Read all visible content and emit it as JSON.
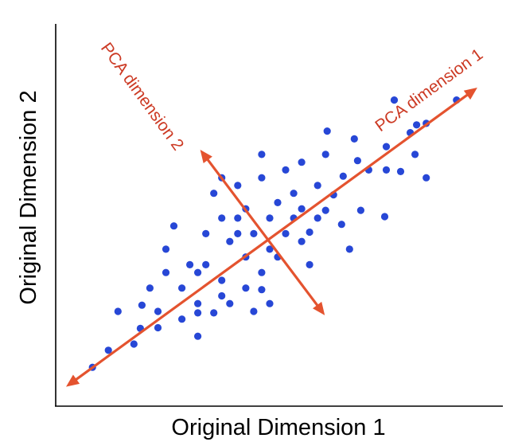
{
  "chart_data": {
    "type": "scatter",
    "xlabel": "Original Dimension 1",
    "ylabel": "Original Dimension 2",
    "grid": false,
    "xlim": [
      70,
      630
    ],
    "ylim": [
      512,
      20
    ],
    "colors": {
      "points": "#2747d6",
      "arrows": "#e4532f",
      "axes": "#000000",
      "labels": "#cc3a24"
    },
    "annotations": [
      {
        "id": "pca1",
        "text": "PCA dimension 1",
        "arrow_from": [
          83,
          487
        ],
        "arrow_to": [
          598,
          102
        ]
      },
      {
        "id": "pca2",
        "text": "PCA dimension 2",
        "arrow_from": [
          251,
          182
        ],
        "arrow_to": [
          407,
          395
        ]
      }
    ],
    "points": [
      [
        116,
        462
      ],
      [
        136,
        440
      ],
      [
        148,
        390
      ],
      [
        168,
        432
      ],
      [
        176,
        412
      ],
      [
        178,
        382
      ],
      [
        188,
        360
      ],
      [
        198,
        390
      ],
      [
        198,
        411
      ],
      [
        208,
        340
      ],
      [
        208,
        310
      ],
      [
        218,
        280
      ],
      [
        228,
        360
      ],
      [
        228,
        400
      ],
      [
        238,
        330
      ],
      [
        248,
        340
      ],
      [
        248,
        380
      ],
      [
        248,
        392
      ],
      [
        248,
        422
      ],
      [
        258,
        330
      ],
      [
        258,
        290
      ],
      [
        268,
        238
      ],
      [
        268,
        392
      ],
      [
        278,
        270
      ],
      [
        278,
        370
      ],
      [
        278,
        350
      ],
      [
        278,
        218
      ],
      [
        288,
        380
      ],
      [
        288,
        300
      ],
      [
        298,
        270
      ],
      [
        298,
        228
      ],
      [
        298,
        290
      ],
      [
        308,
        320
      ],
      [
        308,
        360
      ],
      [
        308,
        258
      ],
      [
        318,
        390
      ],
      [
        318,
        290
      ],
      [
        328,
        218
      ],
      [
        328,
        188
      ],
      [
        328,
        340
      ],
      [
        328,
        362
      ],
      [
        338,
        270
      ],
      [
        338,
        310
      ],
      [
        338,
        380
      ],
      [
        348,
        250
      ],
      [
        348,
        320
      ],
      [
        358,
        208
      ],
      [
        358,
        290
      ],
      [
        368,
        238
      ],
      [
        368,
        270
      ],
      [
        378,
        258
      ],
      [
        378,
        198
      ],
      [
        378,
        300
      ],
      [
        388,
        330
      ],
      [
        388,
        288
      ],
      [
        398,
        270
      ],
      [
        398,
        228
      ],
      [
        408,
        260
      ],
      [
        408,
        188
      ],
      [
        410,
        158
      ],
      [
        418,
        240
      ],
      [
        428,
        278
      ],
      [
        430,
        216
      ],
      [
        438,
        310
      ],
      [
        444,
        168
      ],
      [
        448,
        196
      ],
      [
        452,
        260
      ],
      [
        462,
        208
      ],
      [
        482,
        268
      ],
      [
        484,
        178
      ],
      [
        484,
        208
      ],
      [
        494,
        118
      ],
      [
        502,
        210
      ],
      [
        514,
        160
      ],
      [
        520,
        188
      ],
      [
        534,
        218
      ],
      [
        522,
        150
      ],
      [
        534,
        148
      ],
      [
        572,
        118
      ]
    ]
  }
}
